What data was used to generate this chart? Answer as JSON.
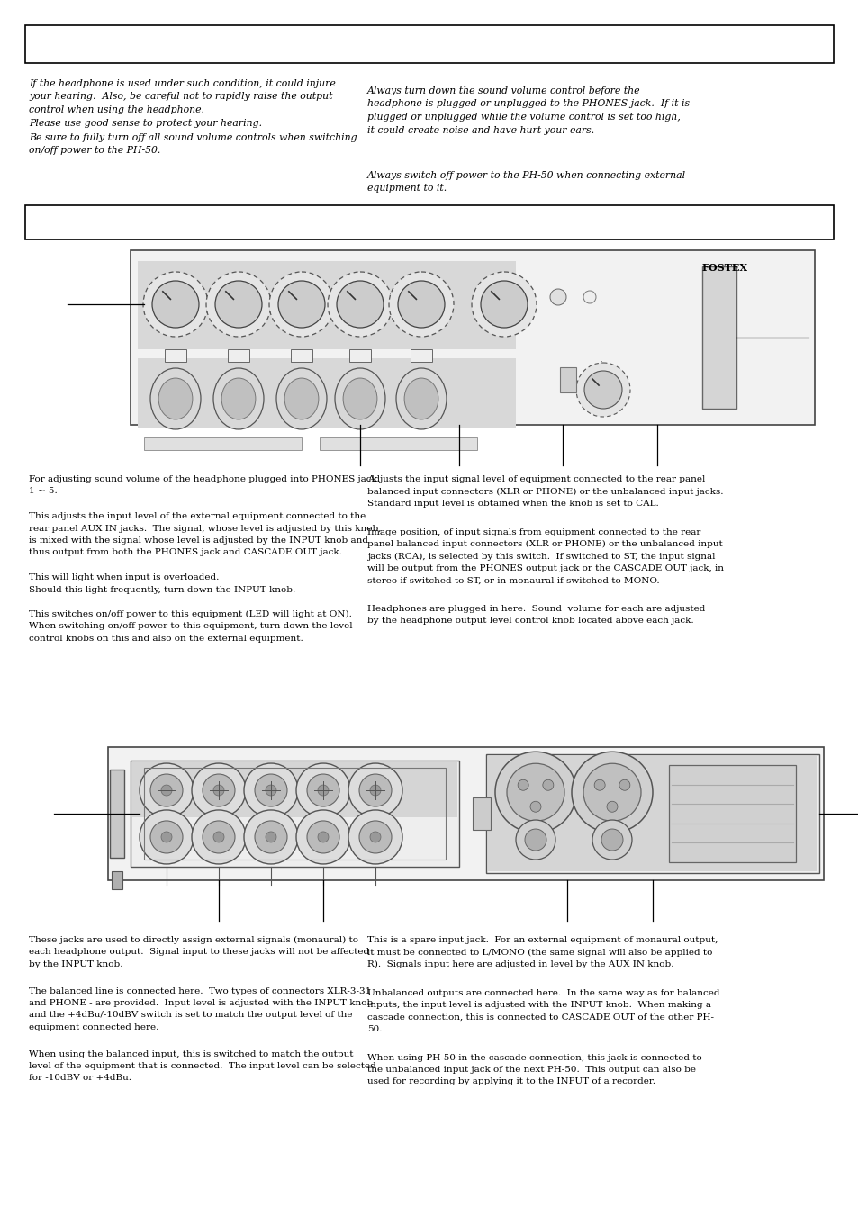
{
  "bg_color": "#ffffff",
  "page_width": 9.54,
  "page_height": 13.51,
  "warning_left_col1": [
    "If the headphone is used under such condition, it could injure",
    "your hearing.  Also, be careful not to rapidly raise the output",
    "control when using the headphone.",
    "Please use good sense to protect your hearing."
  ],
  "warning_right_col1": [
    "Always turn down the sound volume control before the",
    "headphone is plugged or unplugged to the PHONES jack.  If it is",
    "plugged or unplugged while the volume control is set too high,",
    "it could create noise and have hurt your ears."
  ],
  "warning_left_col2": [
    "Be sure to fully turn off all sound volume controls when switching",
    "on/off power to the PH-50."
  ],
  "warning_right_col2": [
    "Always switch off power to the PH-50 when connecting external",
    "equipment to it."
  ],
  "desc_left": [
    [
      "For adjusting sound volume of the headphone plugged into PHONES jack",
      "1 ~ 5."
    ],
    [
      "This adjusts the input level of the external equipment connected to the",
      "rear panel AUX IN jacks.  The signal, whose level is adjusted by this knob,",
      "is mixed with the signal whose level is adjusted by the INPUT knob and",
      "thus output from both the PHONES jack and CASCADE OUT jack."
    ],
    [
      "This will light when input is overloaded.",
      "Should this light frequently, turn down the INPUT knob."
    ],
    [
      "This switches on/off power to this equipment (LED will light at ON).",
      "When switching on/off power to this equipment, turn down the level",
      "control knobs on this and also on the external equipment."
    ]
  ],
  "desc_right": [
    [
      "Adjusts the input signal level of equipment connected to the rear panel",
      "balanced input connectors (XLR or PHONE) or the unbalanced input jacks.",
      "Standard input level is obtained when the knob is set to CAL."
    ],
    [
      "Image position, of input signals from equipment connected to the rear",
      "panel balanced input connectors (XLR or PHONE) or the unbalanced input",
      "jacks (RCA), is selected by this switch.  If switched to ST, the input signal",
      "will be output from the PHONES output jack or the CASCADE OUT jack, in",
      "stereo if switched to ST, or in monaural if switched to MONO."
    ],
    [
      "Headphones are plugged in here.  Sound  volume for each are adjusted",
      "by the headphone output level control knob located above each jack."
    ]
  ],
  "rear_desc_left": [
    [
      "These jacks are used to directly assign external signals (monaural) to",
      "each headphone output.  Signal input to these jacks will not be affected",
      "by the INPUT knob."
    ],
    [
      "The balanced line is connected here.  Two types of connectors XLR-3-31",
      "and PHONE - are provided.  Input level is adjusted with the INPUT knob",
      "and the +4dBu/-10dBV switch is set to match the output level of the",
      "equipment connected here."
    ],
    [
      "When using the balanced input, this is switched to match the output",
      "level of the equipment that is connected.  The input level can be selected",
      "for -10dBV or +4dBu."
    ]
  ],
  "rear_desc_right": [
    [
      "This is a spare input jack.  For an external equipment of monaural output,",
      "it must be connected to L/MONO (the same signal will also be applied to",
      "R).  Signals input here are adjusted in level by the AUX IN knob."
    ],
    [
      "Unbalanced outputs are connected here.  In the same way as for balanced",
      "inputs, the input level is adjusted with the INPUT knob.  When making a",
      "cascade connection, this is connected to CASCADE OUT of the other PH-",
      "50."
    ],
    [
      "When using PH-50 in the cascade connection, this jack is connected to",
      "the unbalanced input jack of the next PH-50.  This output can also be",
      "used for recording by applying it to the INPUT of a recorder."
    ]
  ]
}
